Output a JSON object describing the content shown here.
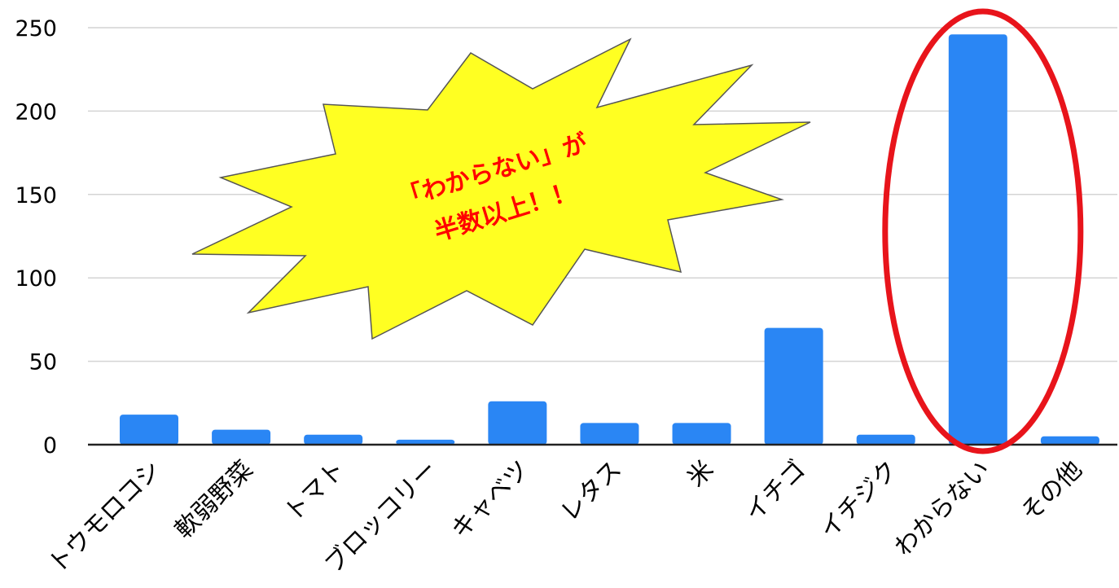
{
  "chart_data": {
    "type": "bar",
    "categories": [
      "トウモロコシ",
      "軟弱野菜",
      "トマト",
      "ブロッコリー",
      "キャベツ",
      "レタス",
      "米",
      "イチゴ",
      "イチジク",
      "わからない",
      "その他"
    ],
    "values": [
      18,
      9,
      6,
      3,
      26,
      13,
      13,
      70,
      6,
      246,
      5
    ],
    "ylim": [
      0,
      250
    ],
    "yticks": [
      0,
      50,
      100,
      150,
      200,
      250
    ],
    "grid": true,
    "bar_color": "#2a86f4",
    "highlight": {
      "category": "わからない",
      "shape": "ellipse",
      "color": "#e8141b"
    },
    "annotation": {
      "lines": [
        "「わからない」が",
        "半数以上！！"
      ],
      "text_color": "#ff0000",
      "burst_fill": "#ffff22"
    }
  }
}
